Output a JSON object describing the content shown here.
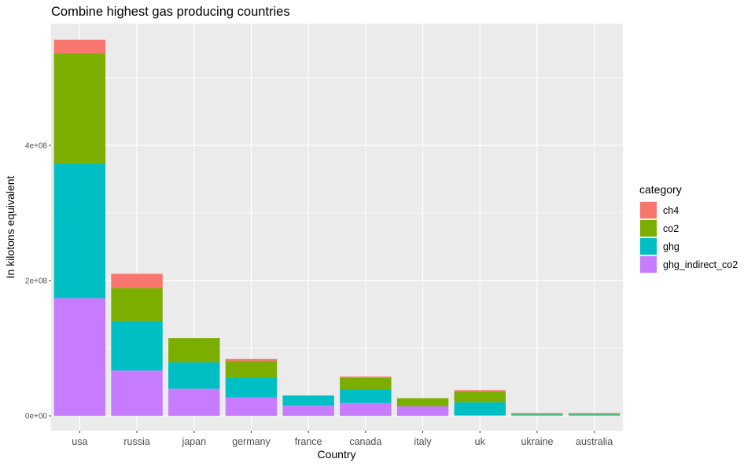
{
  "chart_data": {
    "type": "bar",
    "stacked": true,
    "title": "Combine highest gas producing countries",
    "xlabel": "Country",
    "ylabel": "In kilotons equivalent",
    "categories": [
      "usa",
      "russia",
      "japan",
      "germany",
      "france",
      "canada",
      "italy",
      "uk",
      "ukraine",
      "australia"
    ],
    "ylim": [
      -22000000,
      580000000
    ],
    "yticks": [
      0,
      200000000,
      400000000
    ],
    "ytick_labels": [
      "0e+00",
      "2e+08",
      "4e+08"
    ],
    "ygrid_minor": [
      100000000,
      300000000,
      500000000
    ],
    "grid": true,
    "series": [
      {
        "name": "ghg_indirect_co2",
        "color": "#C77CFF",
        "values": [
          174000000,
          67000000,
          40000000,
          27000000,
          15000000,
          19000000,
          14000000,
          1000000,
          1000000,
          1000000
        ]
      },
      {
        "name": "ghg",
        "color": "#00BFC4",
        "values": [
          199000000,
          73000000,
          39000000,
          30000000,
          15000000,
          20000000,
          0,
          19000000,
          1000000,
          1000000
        ]
      },
      {
        "name": "co2",
        "color": "#7CAE00",
        "values": [
          163000000,
          49000000,
          36000000,
          24000000,
          0,
          17000000,
          12000000,
          16000000,
          1000000,
          1000000
        ]
      },
      {
        "name": "ch4",
        "color": "#F8766D",
        "values": [
          20000000,
          21000000,
          0,
          3000000,
          0,
          2000000,
          0,
          2000000,
          1000000,
          1000000
        ]
      }
    ],
    "legend": {
      "title": "category",
      "position": "right",
      "order": [
        "ch4",
        "co2",
        "ghg",
        "ghg_indirect_co2"
      ]
    }
  }
}
